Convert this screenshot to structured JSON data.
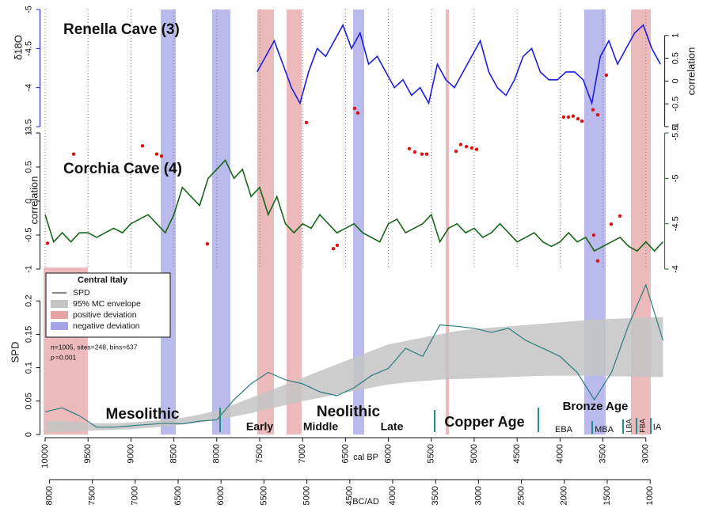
{
  "chart_data": [
    {
      "type": "line",
      "title": "Renella Cave (3)",
      "y_label": "δ18O",
      "y2_label": "correlation",
      "invert_y": true,
      "ylim": [
        -5,
        -3.5
      ],
      "yticks": [
        -5,
        -4.5,
        -4,
        -3.5
      ],
      "y2lim": [
        -1,
        1.57
      ],
      "y2ticks": [
        -1,
        -0.5,
        0,
        0.5,
        1
      ],
      "series": [
        {
          "color": "#1c1ce6",
          "x": [
            7530,
            7430,
            7330,
            7230,
            7130,
            7030,
            6930,
            6830,
            6730,
            6630,
            6530,
            6430,
            6330,
            6230,
            6130,
            6030,
            5930,
            5830,
            5730,
            5630,
            5530,
            5430,
            5330,
            5230,
            5130,
            5030,
            4930,
            4830,
            4730,
            4630,
            4530,
            4430,
            4330,
            4230,
            4130,
            4030,
            3930,
            3830,
            3730,
            3630,
            3530,
            3430,
            3330,
            3230,
            3130,
            3030,
            2930,
            2830
          ],
          "values": [
            -4.2,
            -4.4,
            -4.6,
            -4.3,
            -4.0,
            -3.8,
            -4.2,
            -4.5,
            -4.4,
            -4.6,
            -4.8,
            -4.5,
            -4.7,
            -4.3,
            -4.4,
            -4.2,
            -4.0,
            -4.1,
            -3.9,
            -4.0,
            -3.8,
            -4.3,
            -4.1,
            -4.0,
            -4.2,
            -4.4,
            -4.6,
            -4.2,
            -4.0,
            -3.9,
            -4.1,
            -4.4,
            -4.5,
            -4.2,
            -4.1,
            -4.1,
            -4.2,
            -4.2,
            -4.1,
            -3.8,
            -4.4,
            -4.6,
            -4.3,
            -4.5,
            -4.7,
            -4.8,
            -4.5,
            -4.3
          ]
        },
        {
          "type": "scatter",
          "axis": "y2",
          "color": "#e01010",
          "x": [
            6956,
            6393,
            6356,
            3958,
            3902,
            3847,
            3791,
            3745,
            3616,
            3561,
            3460
          ],
          "values": [
            -0.91,
            -0.6,
            -0.7,
            -0.79,
            -0.79,
            -0.77,
            -0.83,
            -0.88,
            -0.63,
            -0.74,
            0.13
          ]
        }
      ]
    },
    {
      "type": "line",
      "title": "Corchia Cave (4)",
      "y_label": "correlation",
      "ylim": [
        -1,
        1
      ],
      "yticks": [
        -1,
        -0.5,
        0,
        0.5,
        1
      ],
      "invert_y2": true,
      "y2lim": [
        -5.5,
        -4
      ],
      "y2ticks": [
        -5.5,
        -5,
        -4.5,
        -4
      ],
      "series": [
        {
          "color": "#17661a",
          "axis": "y2",
          "x": [
            10000,
            9900,
            9800,
            9700,
            9600,
            9500,
            9400,
            9300,
            9200,
            9100,
            9000,
            8900,
            8800,
            8700,
            8600,
            8500,
            8400,
            8300,
            8200,
            8100,
            8000,
            7900,
            7800,
            7700,
            7600,
            7500,
            7400,
            7300,
            7200,
            7100,
            7000,
            6900,
            6800,
            6700,
            6600,
            6500,
            6400,
            6300,
            6200,
            6100,
            6000,
            5900,
            5800,
            5700,
            5600,
            5500,
            5400,
            5300,
            5200,
            5100,
            5000,
            4900,
            4800,
            4700,
            4600,
            4500,
            4400,
            4300,
            4200,
            4100,
            4000,
            3900,
            3800,
            3700,
            3600,
            3500,
            3400,
            3300,
            3200,
            3100,
            3000,
            2900,
            2800
          ],
          "values": [
            -4.6,
            -4.3,
            -4.4,
            -4.3,
            -4.4,
            -4.4,
            -4.35,
            -4.4,
            -4.45,
            -4.4,
            -4.5,
            -4.55,
            -4.6,
            -4.5,
            -4.4,
            -4.6,
            -4.9,
            -4.8,
            -4.7,
            -5.0,
            -5.1,
            -5.2,
            -5.0,
            -5.1,
            -4.8,
            -4.9,
            -4.6,
            -4.8,
            -4.5,
            -4.4,
            -4.5,
            -4.45,
            -4.6,
            -4.5,
            -4.4,
            -4.45,
            -4.5,
            -4.4,
            -4.35,
            -4.3,
            -4.5,
            -4.55,
            -4.4,
            -4.45,
            -4.5,
            -4.6,
            -4.3,
            -4.45,
            -4.5,
            -4.4,
            -4.45,
            -4.35,
            -4.4,
            -4.5,
            -4.4,
            -4.3,
            -4.35,
            -4.4,
            -4.3,
            -4.25,
            -4.3,
            -4.4,
            -4.3,
            -4.35,
            -4.2,
            -4.25,
            -4.3,
            -4.35,
            -4.25,
            -4.2,
            -4.3,
            -4.2,
            -4.3
          ]
        },
        {
          "type": "scatter",
          "color": "#e01010",
          "x": [
            9972,
            9668,
            8865,
            8699,
            8644,
            8109,
            6642,
            6596,
            5757,
            5692,
            5609,
            5554,
            5212,
            5157,
            5092,
            5028,
            4972,
            3607,
            3561,
            3404,
            3303
          ],
          "values": [
            -0.62,
            0.69,
            0.81,
            0.69,
            0.66,
            -0.63,
            -0.7,
            -0.65,
            0.77,
            0.72,
            0.69,
            0.69,
            0.73,
            0.83,
            0.8,
            0.78,
            0.76,
            -0.5,
            -0.88,
            -0.34,
            -0.22
          ]
        }
      ]
    },
    {
      "type": "area",
      "y_label": "SPD",
      "x_label": "cal BP",
      "x2_label": "BC/AD",
      "xlim": [
        10060,
        2780
      ],
      "xticks": [
        10000,
        9500,
        9000,
        8500,
        8000,
        7500,
        7000,
        6500,
        6000,
        5500,
        5000,
        4500,
        4000,
        3500,
        3000
      ],
      "x2lim": [
        8110,
        830
      ],
      "x2ticks": [
        8000,
        7500,
        7000,
        6500,
        6000,
        5500,
        5000,
        4500,
        4000,
        3500,
        3000,
        2500,
        2000,
        1500,
        1000
      ],
      "ylim": [
        0,
        0.25
      ],
      "yticks": [
        0,
        0.05,
        0.1,
        0.15,
        0.2
      ],
      "grid": true,
      "legend_title": "Central Italy",
      "stats": "n=1005, sites=248, bins=637",
      "p_label": "p",
      "p_value": "=0.001",
      "x": [
        10000,
        9800,
        9600,
        9400,
        9200,
        9000,
        8800,
        8600,
        8400,
        8200,
        8000,
        7800,
        7600,
        7400,
        7200,
        7000,
        6800,
        6600,
        6400,
        6200,
        6000,
        5800,
        5600,
        5400,
        5200,
        5000,
        4800,
        4600,
        4400,
        4200,
        4000,
        3800,
        3600,
        3400,
        3200,
        3000,
        2800
      ],
      "series": [
        {
          "name": "SPD",
          "color": "#2a7d7d",
          "values": [
            0.034,
            0.04,
            0.028,
            0.011,
            0.011,
            0.013,
            0.015,
            0.017,
            0.016,
            0.02,
            0.022,
            0.052,
            0.076,
            0.093,
            0.082,
            0.076,
            0.064,
            0.058,
            0.07,
            0.088,
            0.099,
            0.129,
            0.117,
            0.164,
            0.162,
            0.159,
            0.153,
            0.159,
            0.141,
            0.129,
            0.117,
            0.093,
            0.052,
            0.093,
            0.164,
            0.224,
            0.141
          ]
        },
        {
          "name": "95% MC envelope",
          "color": "#c4c4c4",
          "lower": [
            0.003,
            0.004,
            0.005,
            0.006,
            0.007,
            0.008,
            0.01,
            0.012,
            0.015,
            0.018,
            0.022,
            0.027,
            0.032,
            0.038,
            0.044,
            0.05,
            0.055,
            0.06,
            0.065,
            0.07,
            0.075,
            0.078,
            0.08,
            0.082,
            0.083,
            0.084,
            0.085,
            0.086,
            0.087,
            0.088,
            0.088,
            0.088,
            0.088,
            0.087,
            0.087,
            0.086,
            0.086
          ],
          "upper": [
            0.02,
            0.02,
            0.018,
            0.017,
            0.017,
            0.018,
            0.02,
            0.022,
            0.025,
            0.03,
            0.036,
            0.045,
            0.055,
            0.065,
            0.075,
            0.085,
            0.095,
            0.105,
            0.115,
            0.125,
            0.135,
            0.14,
            0.145,
            0.15,
            0.155,
            0.158,
            0.16,
            0.162,
            0.164,
            0.166,
            0.168,
            0.17,
            0.172,
            0.173,
            0.174,
            0.175,
            0.176
          ]
        },
        {
          "name": "positive deviation",
          "color": "#e6a3a3",
          "bands": [
            [
              10018,
              9502
            ],
            [
              7528,
              7334
            ],
            [
              7186,
              7011
            ],
            [
              5332,
              5295
            ],
            [
              3173,
              2943
            ]
          ]
        },
        {
          "name": "negative deviation",
          "color": "#a3a3e6",
          "bands": [
            [
              8653,
              8478
            ],
            [
              8054,
              7841
            ],
            [
              6411,
              6282
            ],
            [
              3718,
              3469
            ]
          ]
        }
      ],
      "periods": [
        "Mesolithic",
        "Neolithic",
        "Early",
        "Middle",
        "Late",
        "Copper Age",
        "Bronze Age",
        "EBA",
        "MBA",
        "LBA",
        "FBA",
        "IA"
      ]
    }
  ]
}
